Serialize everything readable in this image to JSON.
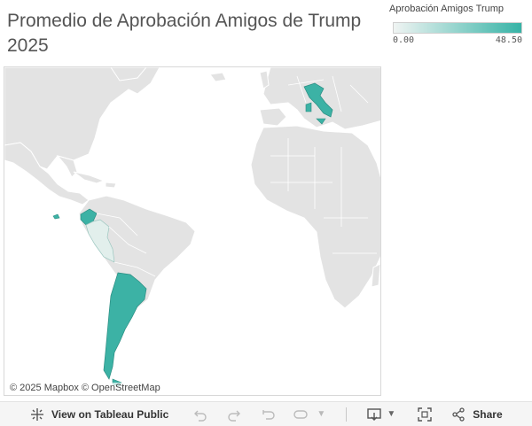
{
  "title": "Promedio de Aprobación Amigos de Trump 2025",
  "legend": {
    "title": "Aprobación Amigos Trump",
    "min_label": "0.00",
    "max_label": "48.50",
    "color_low": "#f0f4f3",
    "color_high": "#36b3a6"
  },
  "map": {
    "attribution": "© 2025 Mapbox  © OpenStreetMap",
    "land_color": "#e3e3e3",
    "border_color": "#ffffff",
    "highlighted_countries": [
      {
        "name": "Italy",
        "value_level": "high",
        "color": "#3cb2a5"
      },
      {
        "name": "Ecuador",
        "value_level": "high",
        "color": "#3cb2a5"
      },
      {
        "name": "Peru",
        "value_level": "low",
        "color": "#e2efec"
      },
      {
        "name": "Argentina",
        "value_level": "high",
        "color": "#3cb2a5"
      }
    ]
  },
  "toolbar": {
    "view_label": "View on Tableau Public",
    "share_label": "Share",
    "icons": [
      "tableau-icon",
      "undo-icon",
      "redo-icon",
      "revert-icon",
      "pause-icon",
      "download-icon",
      "fullscreen-icon",
      "share-icon"
    ]
  }
}
